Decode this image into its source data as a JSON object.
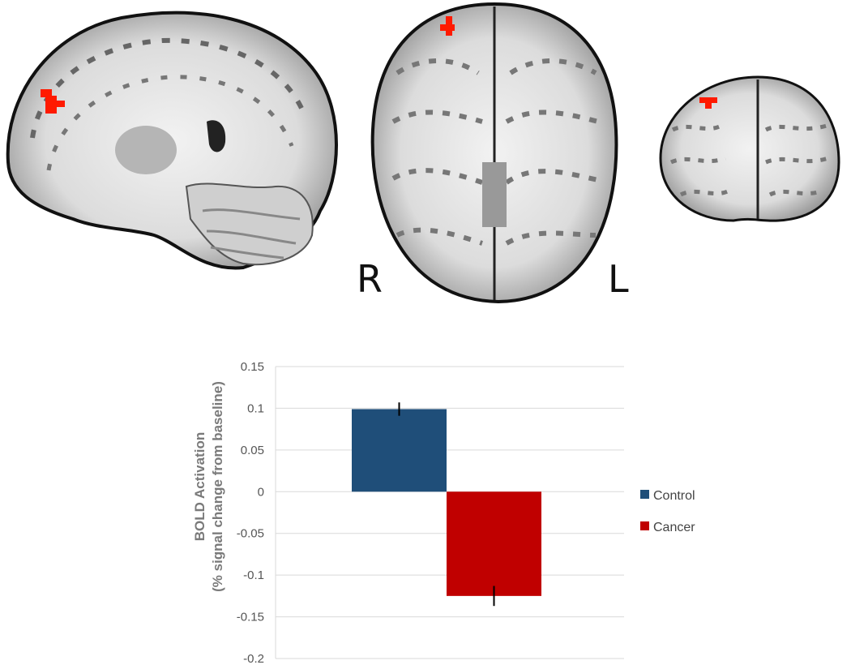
{
  "figure": {
    "views": [
      {
        "name": "sagittal",
        "orientation_labels": []
      },
      {
        "name": "axial",
        "orientation_labels": [
          "R",
          "L"
        ]
      },
      {
        "name": "coronal",
        "orientation_labels": []
      }
    ],
    "activation_color": "#ff1a00",
    "colors": {
      "brain_gray": "#8a8a8a",
      "white_matter": "#e6e6e6",
      "outline": "#111111"
    }
  },
  "chart_data": {
    "type": "bar",
    "title": "",
    "xlabel": "",
    "ylabel_line1": "BOLD Activation",
    "ylabel_line2": "(% signal change from baseline)",
    "ylim": [
      -0.2,
      0.15
    ],
    "ticks": [
      0.15,
      0.1,
      0.05,
      0,
      -0.05,
      -0.1,
      -0.15,
      -0.2
    ],
    "tick_labels": [
      "0.15",
      "0.1",
      "0.05",
      "0",
      "-0.05",
      "-0.1",
      "-0.15",
      "-0.2"
    ],
    "grid": true,
    "legend_position": "right",
    "series": [
      {
        "name": "Control",
        "value": 0.099,
        "error": 0.008,
        "color": "#1f4e79"
      },
      {
        "name": "Cancer",
        "value": -0.125,
        "error": 0.012,
        "color": "#c00000"
      }
    ]
  }
}
